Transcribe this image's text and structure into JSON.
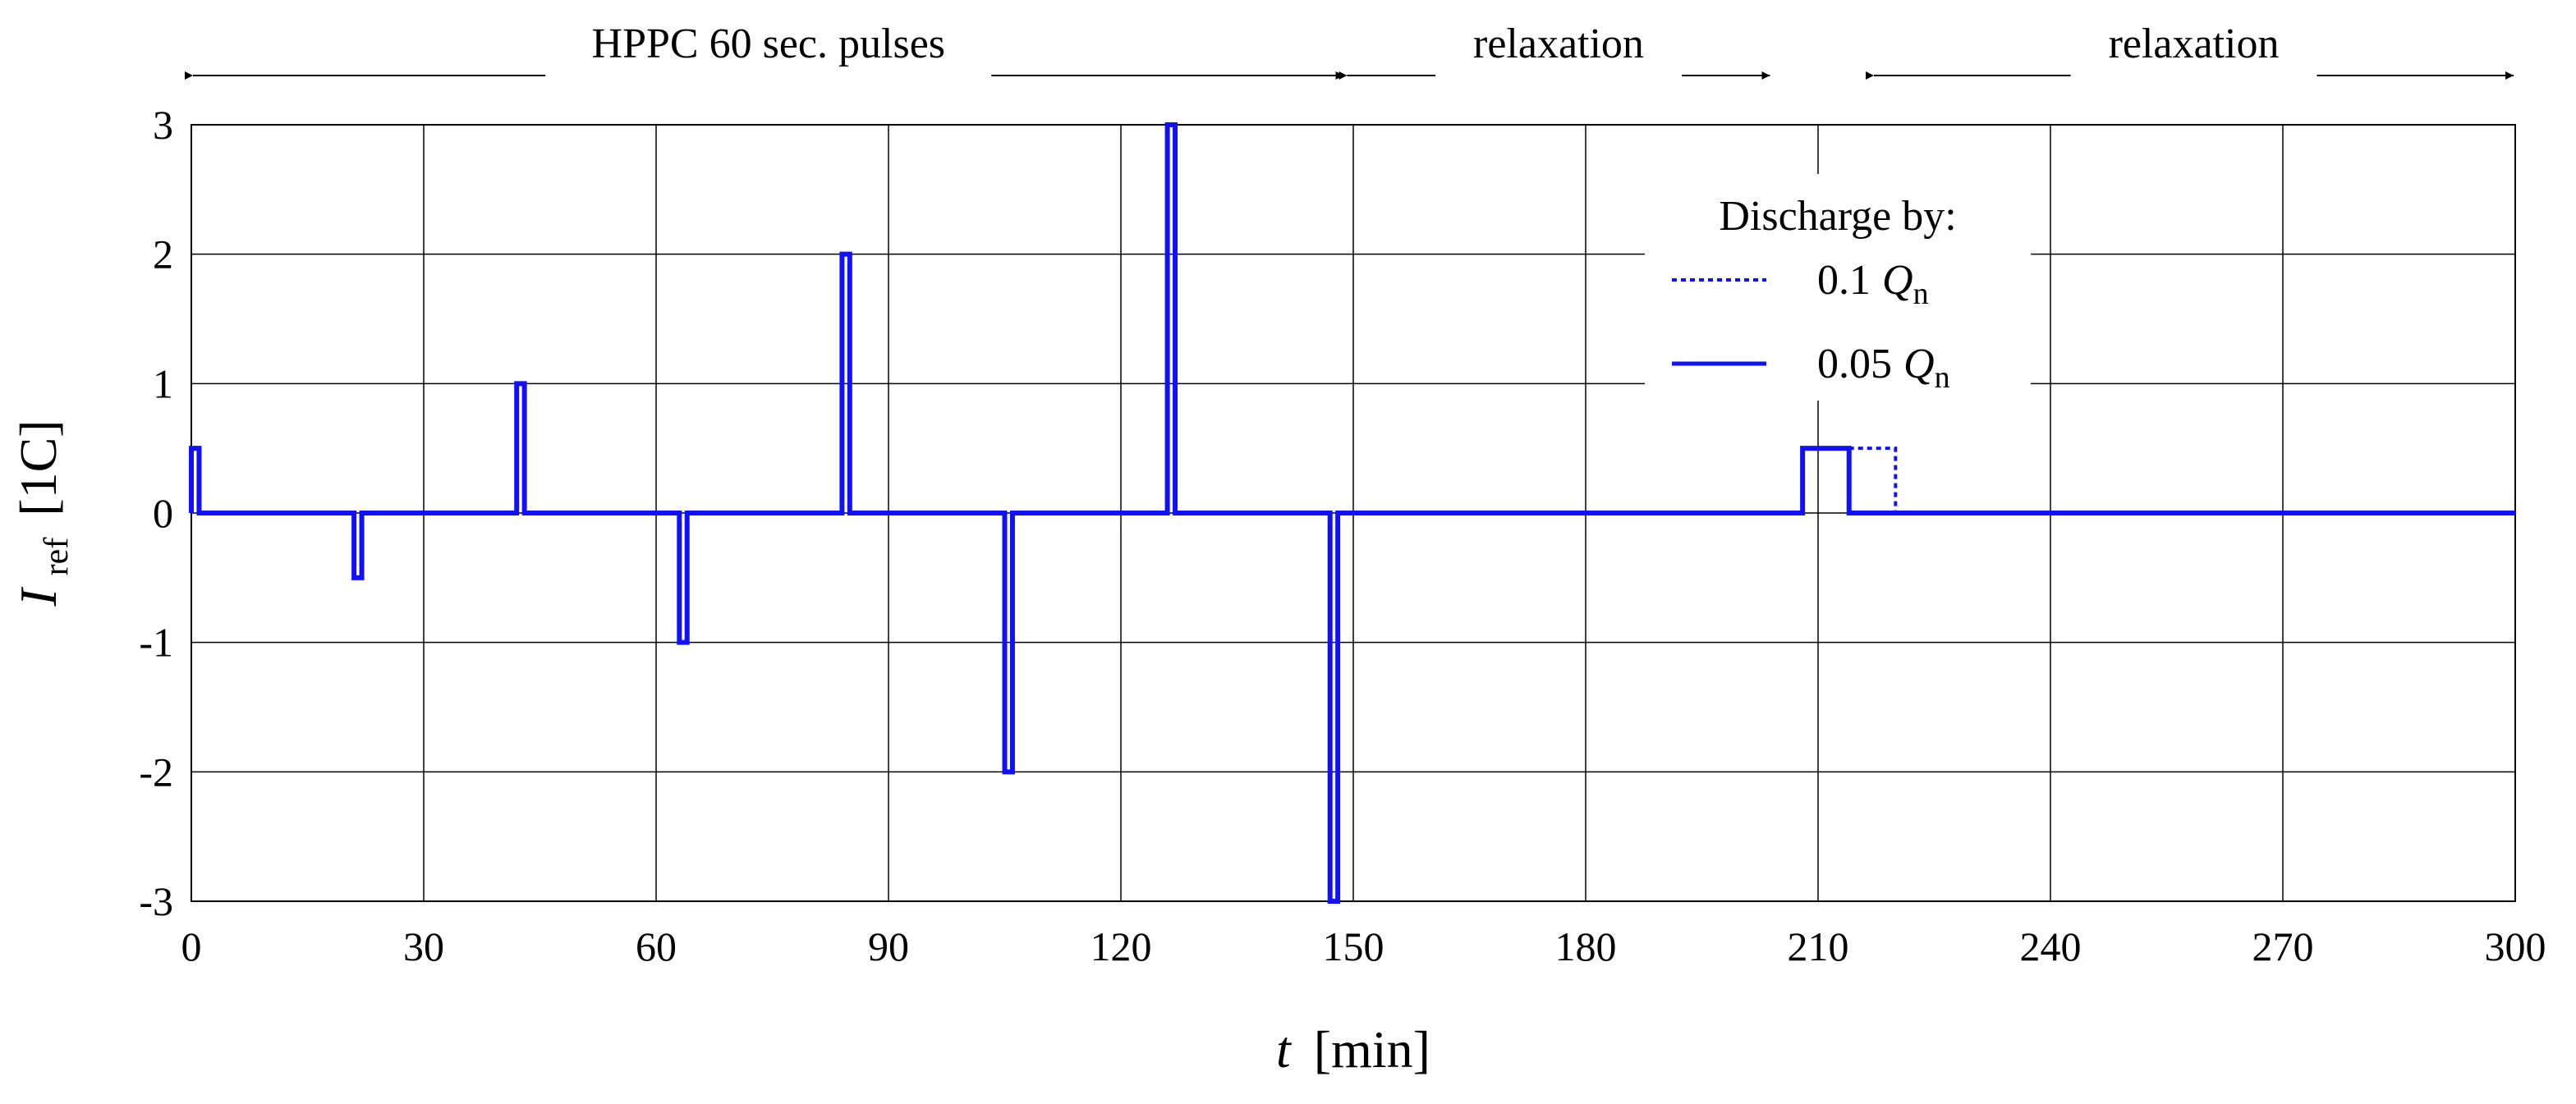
{
  "chart_data": {
    "type": "line",
    "xlabel_var": "t",
    "xlabel_unit": "[min]",
    "ylabel_var": "I",
    "ylabel_sub": "ref",
    "ylabel_unit": "[1C]",
    "xlim": [
      0,
      300
    ],
    "ylim": [
      -3,
      3
    ],
    "xticks": [
      0,
      30,
      60,
      90,
      120,
      150,
      180,
      210,
      240,
      270,
      300
    ],
    "yticks": [
      3,
      2,
      1,
      0,
      -1,
      -2,
      -3
    ],
    "grid": true,
    "legend": {
      "title": "Discharge by:",
      "placement": "top-right",
      "entries": [
        {
          "prefix": "0.1",
          "var": "Q",
          "sub": "n",
          "style": "dotted"
        },
        {
          "prefix": "0.05",
          "var": "Q",
          "sub": "n",
          "style": "solid"
        }
      ]
    },
    "annotations": [
      {
        "text": "HPPC 60 sec. pulses",
        "x_start": 0,
        "x_end": 149
      },
      {
        "text": "relaxation",
        "x_start": 149,
        "x_end": 204
      },
      {
        "text": "relaxation",
        "x_start": 217,
        "x_end": 300
      }
    ],
    "series": [
      {
        "style": "solid",
        "color": "#1010ff",
        "x": [
          0,
          0,
          1,
          1,
          21,
          21,
          22,
          22,
          42,
          42,
          43,
          43,
          63,
          63,
          64,
          64,
          84,
          84,
          85,
          85,
          105,
          105,
          106,
          106,
          126,
          126,
          127,
          127,
          147,
          147,
          148,
          148,
          208,
          208,
          214,
          214,
          300
        ],
        "y": [
          0,
          0.5,
          0.5,
          0,
          0,
          -0.5,
          -0.5,
          0,
          0,
          1,
          1,
          0,
          0,
          -1,
          -1,
          0,
          0,
          2,
          2,
          0,
          0,
          -2,
          -2,
          0,
          0,
          3,
          3,
          0,
          0,
          -3,
          -3,
          0,
          0,
          0.5,
          0.5,
          0,
          0
        ]
      },
      {
        "style": "dotted",
        "color": "#1010ff",
        "x": [
          214,
          220,
          220
        ],
        "y": [
          0.5,
          0.5,
          0
        ]
      }
    ]
  }
}
